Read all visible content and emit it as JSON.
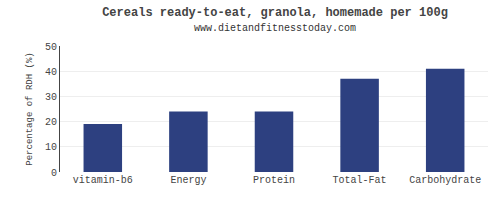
{
  "chart_data": {
    "type": "bar",
    "title": "Cereals ready-to-eat, granola, homemade per 100g",
    "subtitle": "www.dietandfitnesstoday.com",
    "ylabel": "Percentage of RDH (%)",
    "categories": [
      "vitamin-b6",
      "Energy",
      "Protein",
      "Total-Fat",
      "Carbohydrate"
    ],
    "values": [
      19,
      24,
      24,
      37,
      41
    ],
    "color": "#2d4080",
    "ylim": [
      0,
      50
    ],
    "yticks": [
      0,
      10,
      20,
      30,
      40,
      50
    ],
    "grid": true
  }
}
